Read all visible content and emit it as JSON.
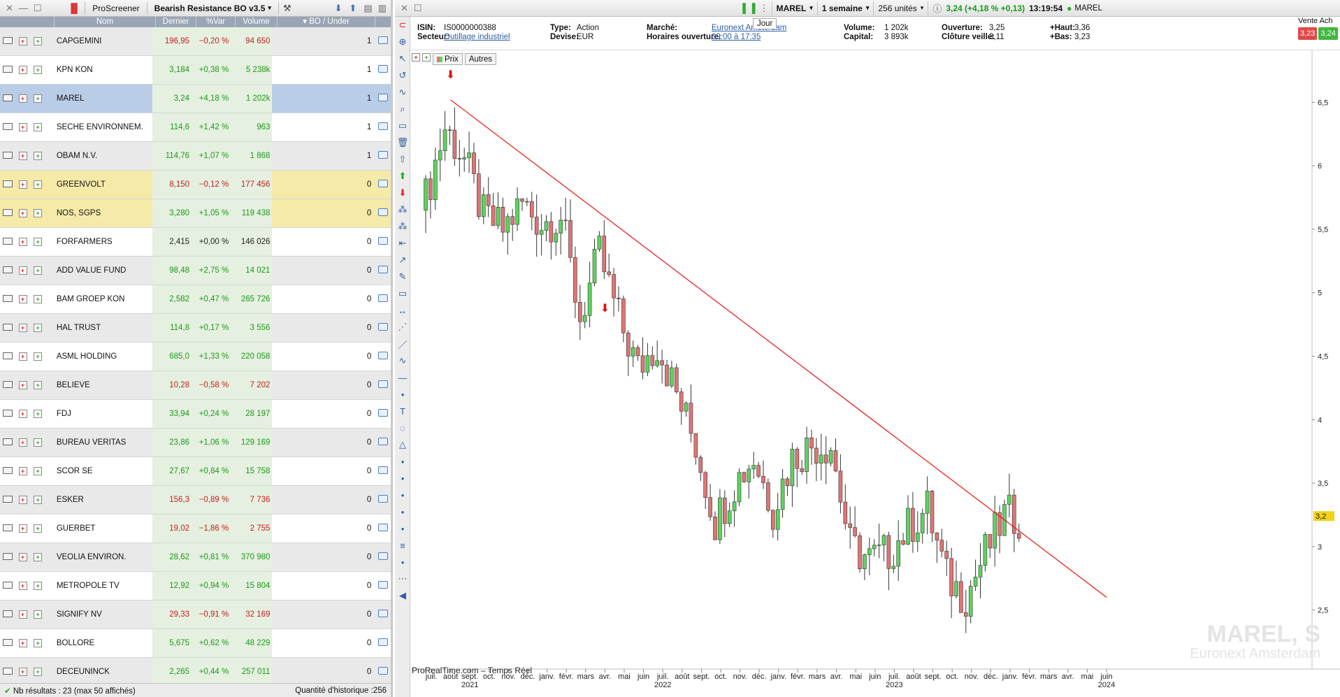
{
  "left_toolbar": {
    "screener_label": "ProScreener",
    "screener_name": "Bearish Resistance BO v3.5"
  },
  "columns": [
    "Nom",
    "Dernier",
    "%Var",
    "Volume",
    "BO / Under"
  ],
  "rows": [
    {
      "name": "CAPGEMINI",
      "last": "196,95",
      "var": "−0,20 %",
      "vol": "94 650",
      "bo": "1",
      "dir": "dn",
      "style": "alt"
    },
    {
      "name": "KPN KON",
      "last": "3,184",
      "var": "+0,38 %",
      "vol": "5 238k",
      "bo": "1",
      "dir": "up",
      "style": "plain"
    },
    {
      "name": "MAREL",
      "last": "3,24",
      "var": "+4,18 %",
      "vol": "1 202k",
      "bo": "1",
      "dir": "up",
      "style": "sel"
    },
    {
      "name": "SECHE ENVIRONNEM.",
      "last": "114,6",
      "var": "+1,42 %",
      "vol": "963",
      "bo": "1",
      "dir": "up",
      "style": "plain"
    },
    {
      "name": "OBAM N.V.",
      "last": "114,76",
      "var": "+1,07 %",
      "vol": "1 868",
      "bo": "1",
      "dir": "up",
      "style": "alt"
    },
    {
      "name": "GREENVOLT",
      "last": "8,150",
      "var": "−0,12 %",
      "vol": "177 456",
      "bo": "0",
      "dir": "dn",
      "style": "yel"
    },
    {
      "name": "NOS, SGPS",
      "last": "3,280",
      "var": "+1,05 %",
      "vol": "119 438",
      "bo": "0",
      "dir": "up",
      "style": "yel"
    },
    {
      "name": "FORFARMERS",
      "last": "2,415",
      "var": "+0,00 %",
      "vol": "146 026",
      "bo": "0",
      "dir": "flat",
      "style": "plain"
    },
    {
      "name": "ADD VALUE FUND",
      "last": "98,48",
      "var": "+2,75 %",
      "vol": "14 021",
      "bo": "0",
      "dir": "up",
      "style": "alt"
    },
    {
      "name": "BAM GROEP KON",
      "last": "2,582",
      "var": "+0,47 %",
      "vol": "265 726",
      "bo": "0",
      "dir": "up",
      "style": "plain"
    },
    {
      "name": "HAL TRUST",
      "last": "114,8",
      "var": "+0,17 %",
      "vol": "3 556",
      "bo": "0",
      "dir": "up",
      "style": "alt"
    },
    {
      "name": "ASML HOLDING",
      "last": "685,0",
      "var": "+1,33 %",
      "vol": "220 058",
      "bo": "0",
      "dir": "up",
      "style": "plain"
    },
    {
      "name": "BELIEVE",
      "last": "10,28",
      "var": "−0,58 %",
      "vol": "7 202",
      "bo": "0",
      "dir": "dn",
      "style": "alt"
    },
    {
      "name": "FDJ",
      "last": "33,94",
      "var": "+0,24 %",
      "vol": "28 197",
      "bo": "0",
      "dir": "up",
      "style": "plain"
    },
    {
      "name": "BUREAU VERITAS",
      "last": "23,86",
      "var": "+1,06 %",
      "vol": "129 169",
      "bo": "0",
      "dir": "up",
      "style": "alt"
    },
    {
      "name": "SCOR SE",
      "last": "27,67",
      "var": "+0,84 %",
      "vol": "15 758",
      "bo": "0",
      "dir": "up",
      "style": "plain"
    },
    {
      "name": "ESKER",
      "last": "156,3",
      "var": "−0,89 %",
      "vol": "7 736",
      "bo": "0",
      "dir": "dn",
      "style": "alt"
    },
    {
      "name": "GUERBET",
      "last": "19,02",
      "var": "−1,86 %",
      "vol": "2 755",
      "bo": "0",
      "dir": "dn",
      "style": "plain"
    },
    {
      "name": "VEOLIA ENVIRON.",
      "last": "28,62",
      "var": "+0,81 %",
      "vol": "370 980",
      "bo": "0",
      "dir": "up",
      "style": "alt"
    },
    {
      "name": "METROPOLE TV",
      "last": "12,92",
      "var": "+0,94 %",
      "vol": "15 804",
      "bo": "0",
      "dir": "up",
      "style": "plain"
    },
    {
      "name": "SIGNIFY NV",
      "last": "29,33",
      "var": "−0,91 %",
      "vol": "32 169",
      "bo": "0",
      "dir": "dn",
      "style": "alt"
    },
    {
      "name": "BOLLORE",
      "last": "5,675",
      "var": "+0,62 %",
      "vol": "48 229",
      "bo": "0",
      "dir": "up",
      "style": "plain"
    },
    {
      "name": "DECEUNINCK",
      "last": "2,265",
      "var": "+0,44 %",
      "vol": "257 011",
      "bo": "0",
      "dir": "up",
      "style": "alt"
    }
  ],
  "status": {
    "results": "Nb résultats : 23 (max 50 affichés)",
    "history": "Quantité d'historique :256"
  },
  "right_toolbar": {
    "symbol": "MAREL",
    "period": "1 semaine",
    "units": "256 unités",
    "quote": "3,24 (+4,18 % +0,13)",
    "time": "13:19:54",
    "name": "MAREL"
  },
  "info": {
    "isin_label": "ISIN:",
    "isin": "IS0000000388",
    "sector_label": "Secteur:",
    "sector": "Outillage industriel",
    "type_label": "Type:",
    "type": "Action",
    "currency_label": "Devise:",
    "currency": "EUR",
    "market_label": "Marché:",
    "market": "Euronext Amsterdam",
    "hours_label": "Horaires ouverture:",
    "hours": "09:00 à 17:35",
    "jour": "Jour",
    "volume_label": "Volume:",
    "volume": "1 202k",
    "capital_label": "Capital:",
    "capital": "3 893k",
    "open_label": "Ouverture:",
    "open": "3,25",
    "prev_close_label": "Clôture veille:",
    "prev_close": "3,11",
    "high_label": "+Haut:",
    "high": "3,36",
    "low_label": "+Bas:",
    "low": "3,23",
    "sell_buy": "Vente Ach",
    "sell": "3,23",
    "buy": "3,24"
  },
  "chart_tabs": {
    "price": "Prix",
    "others": "Autres"
  },
  "watermark": {
    "title": "MAREL, S",
    "exchange": "Euronext Amsterdam"
  },
  "source": "ProRealTime.com – Temps Réel",
  "colors": {
    "up": "#2ea82e",
    "down": "#c02020",
    "candle_up": "#5dd45d",
    "candle_down": "#e07575",
    "trend": "#ee1111"
  },
  "chart_data": {
    "type": "candlestick",
    "x_months": [
      "juil.",
      "août",
      "sept.",
      "oct.",
      "nov.",
      "déc.",
      "janv.",
      "févr.",
      "mars",
      "avr.",
      "mai",
      "juin",
      "juil.",
      "août",
      "sept.",
      "oct.",
      "nov.",
      "déc.",
      "janv.",
      "févr.",
      "mars",
      "avr.",
      "mai",
      "juin",
      "juil.",
      "août",
      "sept.",
      "oct.",
      "nov.",
      "déc.",
      "janv.",
      "févr.",
      "mars",
      "avr.",
      "mai",
      "juin"
    ],
    "x_years": [
      {
        "label": "2021",
        "month_index": 2
      },
      {
        "label": "2022",
        "month_index": 12
      },
      {
        "label": "2023",
        "month_index": 24
      },
      {
        "label": "2024",
        "month_index": 35
      }
    ],
    "y_ticks": [
      "2,5",
      "3",
      "3,5",
      "4",
      "4,5",
      "5",
      "5,5",
      "6",
      "6,5"
    ],
    "y_tick_values": [
      2.5,
      3,
      3.5,
      4,
      4.5,
      5,
      5.5,
      6,
      6.5
    ],
    "ylim": [
      2.2,
      6.8
    ],
    "last_price_label": "3,2",
    "trendline": {
      "start": {
        "date": "2021-08",
        "price": 6.52
      },
      "end": {
        "date": "2024-06",
        "price": 2.6
      }
    },
    "signal_arrows": [
      "2021-08",
      "2022-04"
    ],
    "series": [
      {
        "period": "2021-07",
        "close": 5.75
      },
      {
        "period": "2021-08",
        "close": 6.3
      },
      {
        "period": "2021-09",
        "close": 6.05
      },
      {
        "period": "2021-10",
        "close": 5.6
      },
      {
        "period": "2021-11",
        "close": 5.5
      },
      {
        "period": "2021-12",
        "close": 5.7
      },
      {
        "period": "2022-01",
        "close": 5.55
      },
      {
        "period": "2022-02",
        "close": 5.6
      },
      {
        "period": "2022-03",
        "close": 4.8
      },
      {
        "period": "2022-04",
        "close": 5.3
      },
      {
        "period": "2022-05",
        "close": 4.8
      },
      {
        "period": "2022-06",
        "close": 4.4
      },
      {
        "period": "2022-07",
        "close": 4.6
      },
      {
        "period": "2022-08",
        "close": 4.2
      },
      {
        "period": "2022-09",
        "close": 3.8
      },
      {
        "period": "2022-10",
        "close": 3.2
      },
      {
        "period": "2022-11",
        "close": 3.5
      },
      {
        "period": "2022-12",
        "close": 3.7
      },
      {
        "period": "2023-01",
        "close": 3.3
      },
      {
        "period": "2023-02",
        "close": 3.7
      },
      {
        "period": "2023-03",
        "close": 3.8
      },
      {
        "period": "2023-04",
        "close": 3.8
      },
      {
        "period": "2023-05",
        "close": 3.0
      },
      {
        "period": "2023-06",
        "close": 2.9
      },
      {
        "period": "2023-07",
        "close": 2.95
      },
      {
        "period": "2023-08",
        "close": 3.15
      },
      {
        "period": "2023-09",
        "close": 3.3
      },
      {
        "period": "2023-10",
        "close": 2.75
      },
      {
        "period": "2023-11",
        "close": 2.6
      },
      {
        "period": "2023-12",
        "close": 2.95
      },
      {
        "period": "2024-01",
        "close": 3.24
      }
    ]
  }
}
